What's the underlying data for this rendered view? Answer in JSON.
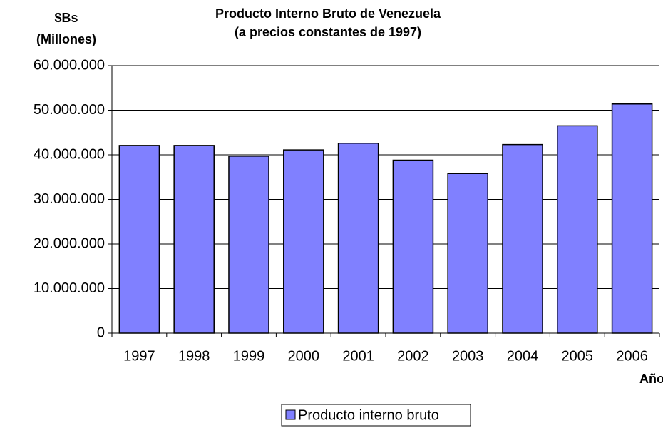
{
  "chart_data": {
    "type": "bar",
    "title": [
      "Producto Interno Bruto de Venezuela",
      "(a precios constantes de 1997)"
    ],
    "ylabel": [
      "$Bs",
      "(Millones)"
    ],
    "xlabel": "Año",
    "categories": [
      "1997",
      "1998",
      "1999",
      "2000",
      "2001",
      "2002",
      "2003",
      "2004",
      "2005",
      "2006"
    ],
    "series": [
      {
        "name": "Producto interno bruto",
        "color": "#8080ff",
        "values": [
          42100000,
          42100000,
          39700000,
          41100000,
          42600000,
          38800000,
          35800000,
          42300000,
          46500000,
          51400000
        ]
      }
    ],
    "ylim": [
      0,
      60000000
    ],
    "yticks": [
      0,
      {
        "value": 10000000,
        "label": "10.000.000"
      },
      {
        "value": 20000000,
        "label": "20.000.000"
      },
      {
        "value": 30000000,
        "label": "30.000.000"
      },
      {
        "value": 40000000,
        "label": "40.000.000"
      },
      {
        "value": 50000000,
        "label": "50.000.000"
      },
      {
        "value": 60000000,
        "label": "60.000.000"
      }
    ],
    "grid": true
  }
}
